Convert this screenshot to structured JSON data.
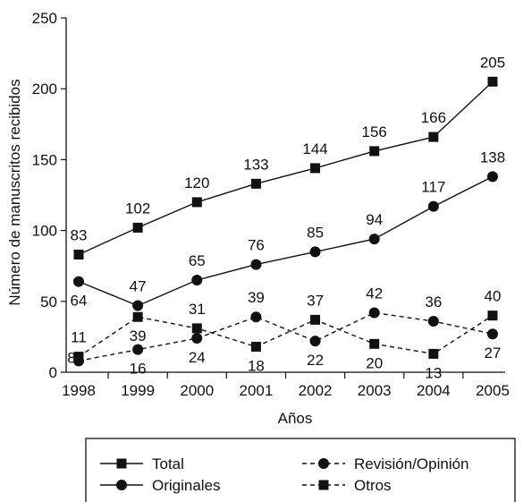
{
  "chart_data": {
    "type": "line",
    "xlabel": "Años",
    "ylabel": "Número de manuscritos recibidos",
    "ylim": [
      0,
      250
    ],
    "yticks": [
      0,
      50,
      100,
      150,
      200,
      250
    ],
    "categories": [
      "1998",
      "1999",
      "2000",
      "2001",
      "2002",
      "2003",
      "2004",
      "2005"
    ],
    "series": [
      {
        "name": "Total",
        "marker": "square",
        "line": "solid",
        "values": [
          83,
          102,
          120,
          133,
          144,
          156,
          166,
          205
        ]
      },
      {
        "name": "Originales",
        "marker": "circle",
        "line": "solid",
        "values": [
          64,
          47,
          65,
          76,
          85,
          94,
          117,
          138
        ]
      },
      {
        "name": "Revisión/Opinión",
        "marker": "circle",
        "line": "dashed",
        "values": [
          8,
          16,
          24,
          39,
          22,
          42,
          36,
          27
        ]
      },
      {
        "name": "Otros",
        "marker": "square",
        "line": "dashed",
        "values": [
          11,
          39,
          31,
          18,
          37,
          20,
          13,
          40
        ]
      }
    ],
    "legend_position": "bottom",
    "grid": false
  }
}
